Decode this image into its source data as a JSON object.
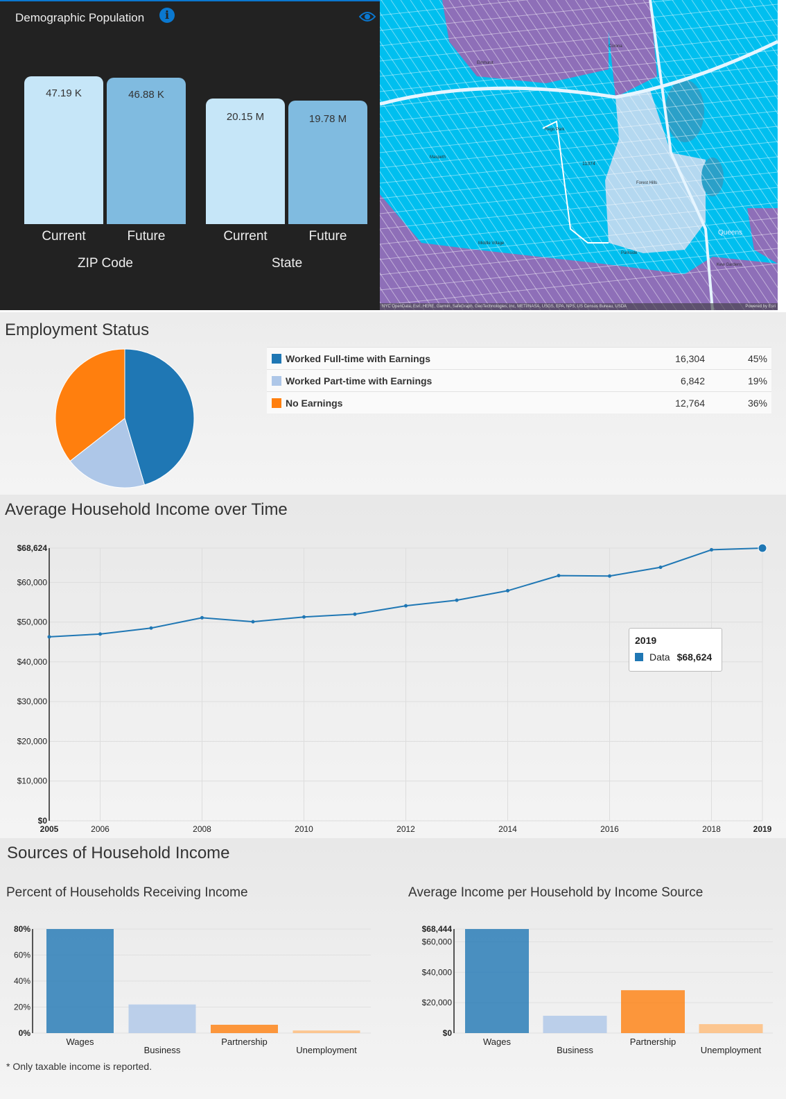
{
  "demographic": {
    "title": "Demographic Population",
    "icons": [
      "info-icon",
      "eye-icon"
    ],
    "groups": [
      {
        "label": "ZIP Code",
        "bars": [
          {
            "label": "Current",
            "value_text": "47.19 K",
            "value": 47.19
          },
          {
            "label": "Future",
            "value_text": "46.88 K",
            "value": 46.88
          }
        ]
      },
      {
        "label": "State",
        "bars": [
          {
            "label": "Current",
            "value_text": "20.15 M",
            "value": 20.15
          },
          {
            "label": "Future",
            "value_text": "19.78 M",
            "value": 19.78
          }
        ]
      }
    ],
    "colors": {
      "current": "#c6e6f8",
      "future": "#80bbe0"
    }
  },
  "map": {
    "labels": [
      "11374",
      "Forest Hills",
      "Rego Park",
      "Maspeth",
      "Middle Village",
      "Parkside",
      "Queens",
      "Elmhurst",
      "Corona",
      "Kew Gardens"
    ],
    "attribution": "NYC OpenData, Esri, HERE, Garmin, SafeGraph, GeoTechnologies, Inc, METI/NASA, USGS, EPA, NPS, US Census Bureau, USDA",
    "powered": "Powered by Esri"
  },
  "employment": {
    "title": "Employment Status",
    "chart_data": {
      "type": "pie",
      "categories": [
        "Worked Full-time with Earnings",
        "Worked Part-time with Earnings",
        "No Earnings"
      ],
      "values": [
        16304,
        6842,
        12764
      ],
      "percent_labels": [
        "45%",
        "19%",
        "36%"
      ],
      "value_labels": [
        "16,304",
        "6,842",
        "12,764"
      ],
      "colors": [
        "#1f77b4",
        "#aec7e8",
        "#ff7f0e"
      ]
    }
  },
  "income_time": {
    "title": "Average Household Income over Time",
    "chart_data": {
      "type": "line",
      "x": [
        2005,
        2006,
        2007,
        2008,
        2009,
        2010,
        2011,
        2012,
        2013,
        2014,
        2015,
        2016,
        2017,
        2018,
        2019
      ],
      "series": [
        {
          "name": "Data",
          "values": [
            46300,
            47000,
            48500,
            51100,
            50100,
            51300,
            52000,
            54100,
            55500,
            57900,
            61700,
            61600,
            63800,
            68200,
            68624
          ]
        }
      ],
      "ylim": [
        0,
        68624
      ],
      "yticks": [
        "$0",
        "$10,000",
        "$20,000",
        "$30,000",
        "$40,000",
        "$50,000",
        "$60,000",
        "$68,624"
      ],
      "xticks": [
        "2005",
        "2006",
        "2008",
        "2010",
        "2012",
        "2014",
        "2016",
        "2018",
        "2019"
      ],
      "grid": true,
      "color": "#1f77b4",
      "tooltip": {
        "title": "2019",
        "series": "Data",
        "value": "$68,624"
      }
    }
  },
  "sources": {
    "title": "Sources of Household Income",
    "footnote": "* Only taxable income is reported.",
    "chart_data": [
      {
        "type": "bar",
        "title": "Percent of Households Receiving Income",
        "categories": [
          "Wages",
          "Business",
          "Partnership",
          "Unemployment"
        ],
        "values": [
          80,
          22,
          6.4,
          2
        ],
        "ylim": [
          0,
          80
        ],
        "yticks": [
          "0%",
          "20%",
          "40%",
          "60%",
          "80%"
        ],
        "colors": [
          "#1f77b4",
          "#aec7e8",
          "#ff7f0e",
          "#ffbb78"
        ]
      },
      {
        "type": "bar",
        "title": "Average Income per Household by Income Source",
        "categories": [
          "Wages",
          "Business",
          "Partnership",
          "Unemployment"
        ],
        "values": [
          68444,
          11400,
          28200,
          5900
        ],
        "ylim": [
          0,
          68444
        ],
        "yticks": [
          "$0",
          "$20,000",
          "$40,000",
          "$60,000",
          "$68,444"
        ],
        "colors": [
          "#1f77b4",
          "#aec7e8",
          "#ff7f0e",
          "#ffbb78"
        ]
      }
    ]
  }
}
